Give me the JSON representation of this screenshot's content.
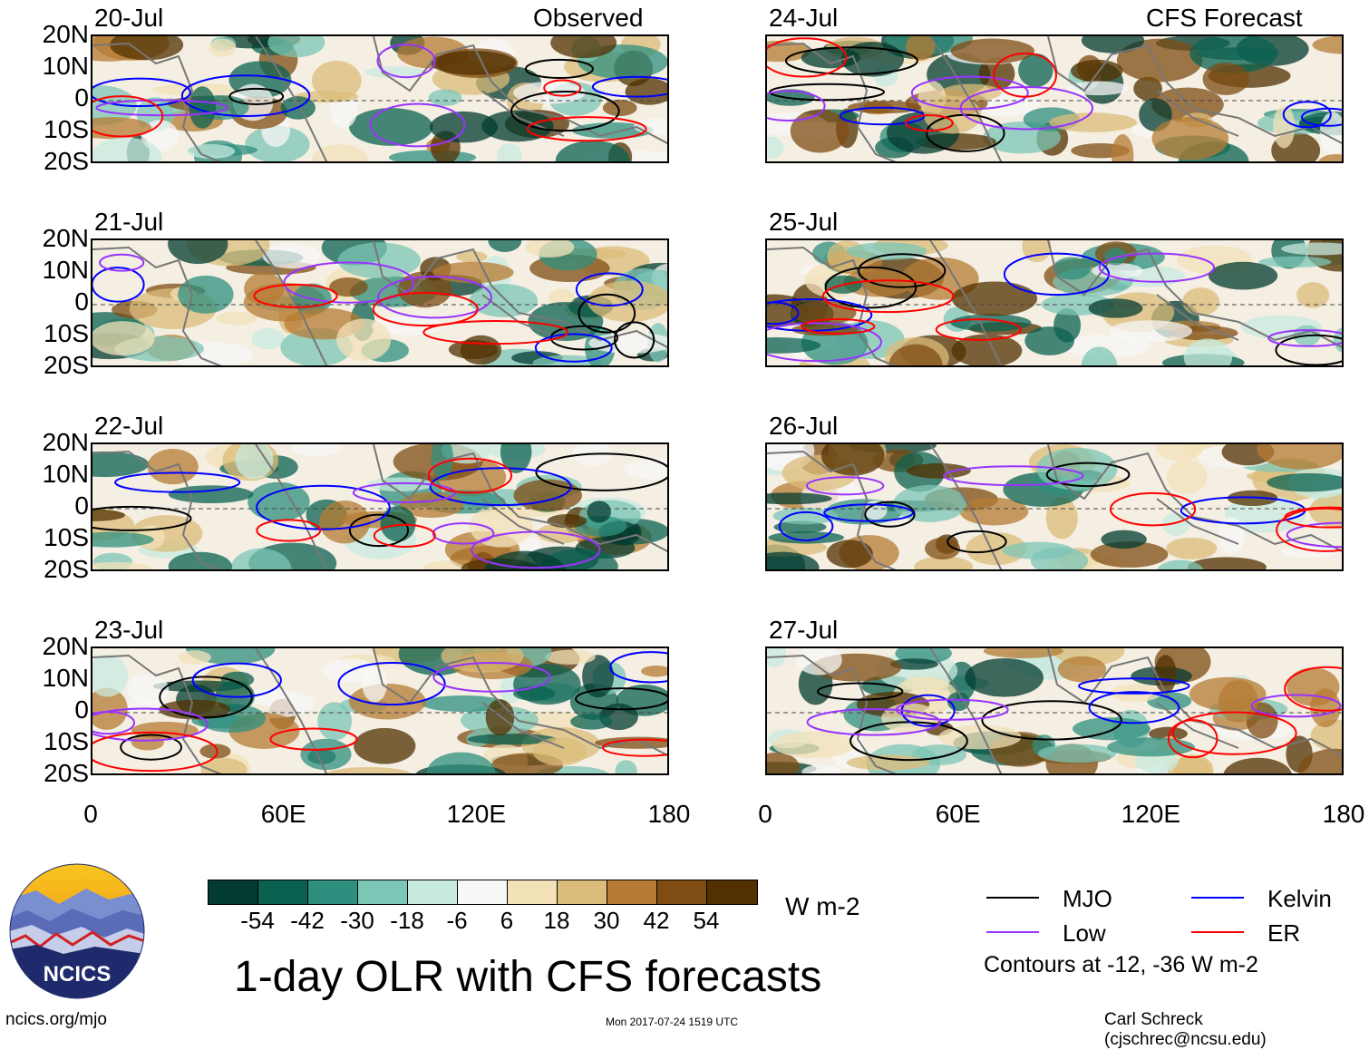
{
  "header": {
    "observed_label": "Observed",
    "forecast_label": "CFS Forecast"
  },
  "panels": {
    "left": [
      {
        "date": "20-Jul"
      },
      {
        "date": "21-Jul"
      },
      {
        "date": "22-Jul"
      },
      {
        "date": "23-Jul"
      }
    ],
    "right": [
      {
        "date": "24-Jul"
      },
      {
        "date": "25-Jul"
      },
      {
        "date": "26-Jul"
      },
      {
        "date": "27-Jul"
      }
    ]
  },
  "axes": {
    "lat_ticks": [
      "20N",
      "10N",
      "0",
      "10S",
      "20S"
    ],
    "lon_ticks": [
      "0",
      "60E",
      "120E",
      "180"
    ],
    "lat_range": [
      -20,
      20
    ],
    "lon_range": [
      0,
      180
    ]
  },
  "colorbar": {
    "labels": [
      "-54",
      "-42",
      "-30",
      "-18",
      "-6",
      "6",
      "18",
      "30",
      "42",
      "54"
    ],
    "colors": [
      "#033b30",
      "#0b6150",
      "#2f8f7e",
      "#7cc6b5",
      "#c8e9df",
      "#f7f7f7",
      "#f3e2b8",
      "#dcbc7a",
      "#b67b33",
      "#7f4c13",
      "#523000"
    ],
    "units": "W m-2"
  },
  "legend": {
    "items": [
      {
        "label": "MJO",
        "color": "#000000"
      },
      {
        "label": "Kelvin",
        "color": "#0000ff"
      },
      {
        "label": "Low",
        "color": "#9933ff"
      },
      {
        "label": "ER",
        "color": "#ff0000"
      }
    ],
    "note": "Contours at -12, -36 W m-2"
  },
  "footer": {
    "title": "1-day OLR with CFS forecasts",
    "site": "ncics.org/mjo",
    "timestamp": "Mon 2017-07-24 1519 UTC",
    "author": "Carl Schreck (cjschrec@ncsu.edu)",
    "logo_text": "NCICS"
  }
}
